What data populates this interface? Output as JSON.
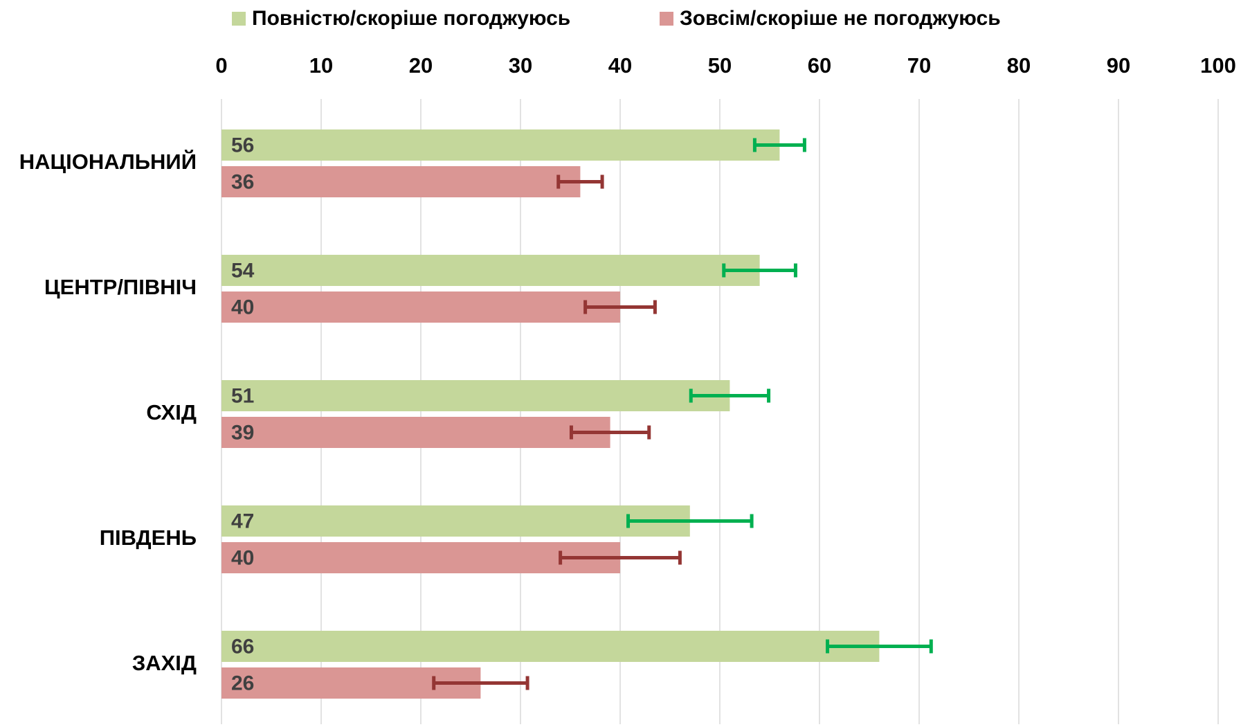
{
  "chart_data": {
    "type": "bar",
    "orientation": "horizontal",
    "categories": [
      "НАЦІОНАЛЬНИЙ",
      "ЦЕНТР/ПІВНІЧ",
      "СХІД",
      "ПІВДЕНЬ",
      "ЗАХІД"
    ],
    "series": [
      {
        "name": "Повністю/скоріше погоджуюсь",
        "color": "#c4d79b",
        "error_color": "#00b050",
        "values": [
          56,
          54,
          51,
          47,
          66
        ],
        "errors": [
          2.5,
          3.6,
          3.9,
          6.2,
          5.2
        ]
      },
      {
        "name": "Зовсім/скоріше не погоджуюсь",
        "color": "#da9694",
        "error_color": "#943634",
        "values": [
          36,
          40,
          39,
          40,
          26
        ],
        "errors": [
          2.2,
          3.5,
          3.9,
          6.0,
          4.7
        ]
      }
    ],
    "xlim": [
      0,
      100
    ],
    "xticks": [
      0,
      10,
      20,
      30,
      40,
      50,
      60,
      70,
      80,
      90,
      100
    ],
    "grid": true,
    "legend": "top"
  }
}
